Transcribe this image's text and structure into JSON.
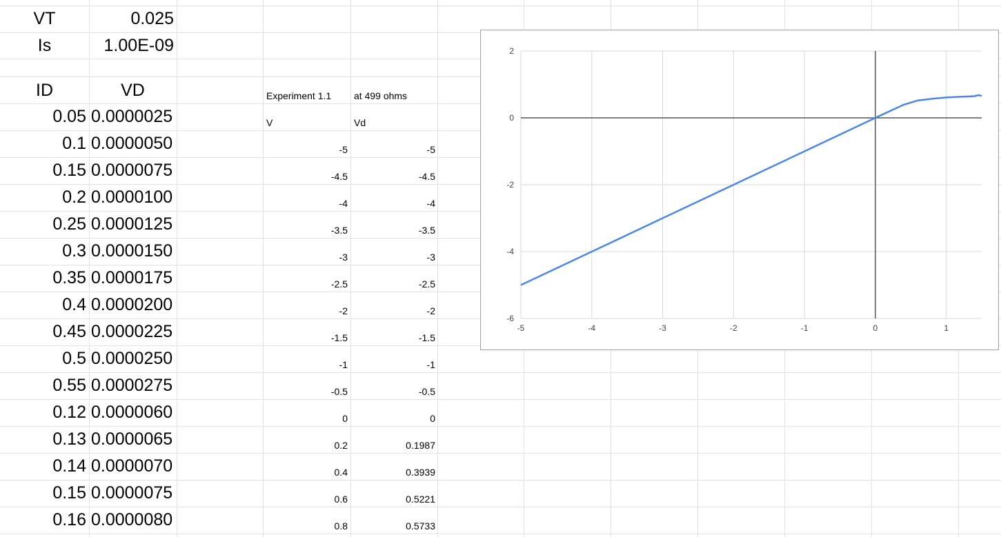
{
  "params": {
    "vt_label": "VT",
    "vt_value": "0.025",
    "is_label": "Is",
    "is_value": "1.00E-09"
  },
  "diode_table": {
    "header_id": "ID",
    "header_vd": "VD",
    "rows": [
      {
        "id": "0.05",
        "vd": "0.0000025"
      },
      {
        "id": "0.1",
        "vd": "0.0000050"
      },
      {
        "id": "0.15",
        "vd": "0.0000075"
      },
      {
        "id": "0.2",
        "vd": "0.0000100"
      },
      {
        "id": "0.25",
        "vd": "0.0000125"
      },
      {
        "id": "0.3",
        "vd": "0.0000150"
      },
      {
        "id": "0.35",
        "vd": "0.0000175"
      },
      {
        "id": "0.4",
        "vd": "0.0000200"
      },
      {
        "id": "0.45",
        "vd": "0.0000225"
      },
      {
        "id": "0.5",
        "vd": "0.0000250"
      },
      {
        "id": "0.55",
        "vd": "0.0000275"
      },
      {
        "id": "0.12",
        "vd": "0.0000060"
      },
      {
        "id": "0.13",
        "vd": "0.0000065"
      },
      {
        "id": "0.14",
        "vd": "0.0000070"
      },
      {
        "id": "0.15",
        "vd": "0.0000075"
      },
      {
        "id": "0.16",
        "vd": "0.0000080"
      }
    ]
  },
  "experiment": {
    "title": "Experiment 1.1",
    "subtitle": "at 499 ohms",
    "header_v": "V",
    "header_vd": "Vd",
    "rows": [
      {
        "v": "-5",
        "vd": "-5"
      },
      {
        "v": "-4.5",
        "vd": "-4.5"
      },
      {
        "v": "-4",
        "vd": "-4"
      },
      {
        "v": "-3.5",
        "vd": "-3.5"
      },
      {
        "v": "-3",
        "vd": "-3"
      },
      {
        "v": "-2.5",
        "vd": "-2.5"
      },
      {
        "v": "-2",
        "vd": "-2"
      },
      {
        "v": "-1.5",
        "vd": "-1.5"
      },
      {
        "v": "-1",
        "vd": "-1"
      },
      {
        "v": "-0.5",
        "vd": "-0.5"
      },
      {
        "v": "0",
        "vd": "0"
      },
      {
        "v": "0.2",
        "vd": "0.1987"
      },
      {
        "v": "0.4",
        "vd": "0.3939"
      },
      {
        "v": "0.6",
        "vd": "0.5221"
      },
      {
        "v": "0.8",
        "vd": "0.5733"
      }
    ]
  },
  "chart_data": {
    "type": "line",
    "title": "",
    "xlabel": "",
    "ylabel": "",
    "xlim": [
      -5,
      1.5
    ],
    "ylim": [
      -6,
      2
    ],
    "x_ticks": [
      "-5",
      "-4",
      "-3",
      "-2",
      "-1",
      "0",
      "1"
    ],
    "y_ticks": [
      "2",
      "0",
      "-2",
      "-4",
      "-6"
    ],
    "grid": true,
    "legend": "none",
    "colors": {
      "series": "#4a86e8",
      "grid": "#d9d9d9",
      "axis": "#555555"
    },
    "series": [
      {
        "x": [
          -5,
          -4.5,
          -4,
          -3.5,
          -3,
          -2.5,
          -2,
          -1.5,
          -1,
          -0.5,
          0,
          0.2,
          0.4,
          0.6,
          0.8,
          1.0,
          1.2,
          1.4,
          1.45,
          1.5
        ],
        "y": [
          -5,
          -4.5,
          -4,
          -3.5,
          -3,
          -2.5,
          -2,
          -1.5,
          -1,
          -0.5,
          0,
          0.1987,
          0.3939,
          0.5221,
          0.5733,
          0.61,
          0.63,
          0.65,
          0.68,
          0.66
        ]
      }
    ]
  }
}
